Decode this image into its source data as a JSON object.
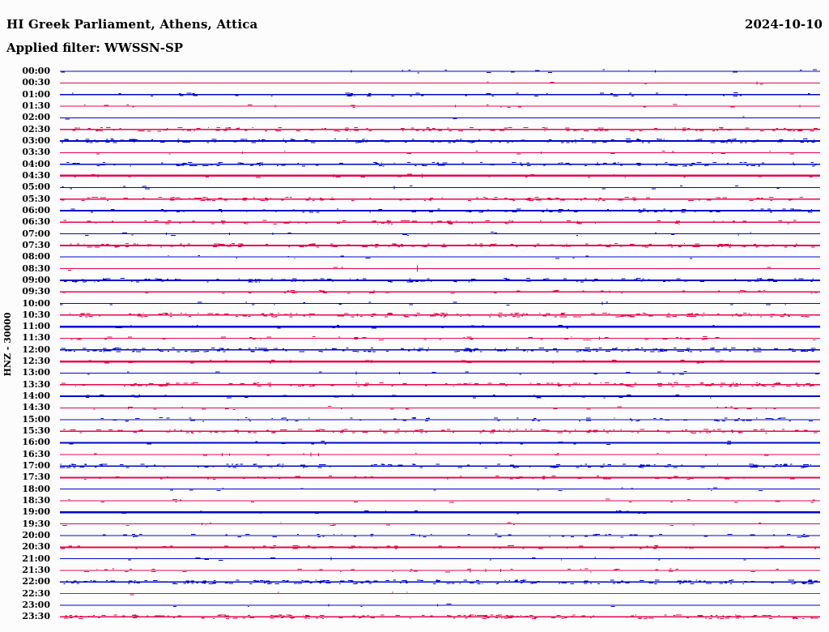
{
  "header": {
    "title": "HI Greek Parliament, Athens, Attica",
    "date": "2024-10-10",
    "filter": "Applied filter: WWSSN-SP"
  },
  "side_label": "HNZ - 30000",
  "colors": {
    "background": "#fcfcfc",
    "text": "#000000",
    "blue": "#0008cc",
    "red": "#e8084c"
  },
  "chart_data": {
    "type": "line",
    "subtype": "helicorder-seismogram",
    "station": "HI Greek Parliament, Athens, Attica",
    "channel": "HNZ",
    "amplitude_scale": 30000,
    "date": "2024-10-10",
    "filter": "WWSSN-SP",
    "row_duration_minutes": 30,
    "rows_per_day": 48,
    "grid": false,
    "legend_position": "none",
    "events_unit": "minutes_into_row, spike_halfheight_px",
    "rows": [
      {
        "time": "00:00",
        "color": "blue",
        "thickness": 1,
        "noise_density": 0.05,
        "noise_amp": 1,
        "events": [
          [
            11.5,
            1.5
          ],
          [
            23.5,
            1.5
          ]
        ]
      },
      {
        "time": "00:30",
        "color": "red",
        "thickness": 1,
        "noise_density": 0.015,
        "noise_amp": 1,
        "events": [
          [
            27.5,
            2
          ]
        ]
      },
      {
        "time": "01:00",
        "color": "blue",
        "thickness": 1.3,
        "noise_density": 0.16,
        "noise_amp": 1.2,
        "events": []
      },
      {
        "time": "01:30",
        "color": "red",
        "thickness": 1,
        "noise_density": 0.05,
        "noise_amp": 1,
        "events": [
          [
            8.5,
            1.5
          ],
          [
            15.6,
            1.5
          ],
          [
            29.2,
            1.5
          ]
        ]
      },
      {
        "time": "02:00",
        "color": "blue",
        "thickness": 1,
        "noise_density": 0.012,
        "noise_amp": 1,
        "events": []
      },
      {
        "time": "02:30",
        "color": "red",
        "thickness": 1.3,
        "noise_density": 0.42,
        "noise_amp": 1.4,
        "events": []
      },
      {
        "time": "03:00",
        "color": "blue",
        "thickness": 1.8,
        "noise_density": 0.45,
        "noise_amp": 1.4,
        "events": []
      },
      {
        "time": "03:30",
        "color": "red",
        "thickness": 1,
        "noise_density": 0.05,
        "noise_amp": 1,
        "events": [
          [
            7.2,
            1.5
          ],
          [
            19,
            1.5
          ]
        ]
      },
      {
        "time": "04:00",
        "color": "blue",
        "thickness": 1.3,
        "noise_density": 0.4,
        "noise_amp": 1.4,
        "events": []
      },
      {
        "time": "04:30",
        "color": "red",
        "thickness": 2.5,
        "noise_density": 0.07,
        "noise_amp": 1,
        "events": [
          [
            1.5,
            2
          ],
          [
            10.8,
            2
          ],
          [
            14.3,
            2.5
          ]
        ]
      },
      {
        "time": "05:00",
        "color": "blue",
        "thickness": 1,
        "noise_density": 0.04,
        "noise_amp": 1,
        "events": [
          [
            13.2,
            2
          ]
        ]
      },
      {
        "time": "05:30",
        "color": "red",
        "thickness": 1.3,
        "noise_density": 0.4,
        "noise_amp": 1.3,
        "events": []
      },
      {
        "time": "06:00",
        "color": "blue",
        "thickness": 1.8,
        "noise_density": 0.25,
        "noise_amp": 1.2,
        "events": []
      },
      {
        "time": "06:30",
        "color": "red",
        "thickness": 1.8,
        "noise_density": 0.25,
        "noise_amp": 1.2,
        "events": []
      },
      {
        "time": "07:00",
        "color": "blue",
        "thickness": 1,
        "noise_density": 0.05,
        "noise_amp": 1,
        "events": [
          [
            4.2,
            1.5
          ],
          [
            6.7,
            1.5
          ],
          [
            8.4,
            1.5
          ]
        ]
      },
      {
        "time": "07:30",
        "color": "red",
        "thickness": 2,
        "noise_density": 0.45,
        "noise_amp": 1.3,
        "events": []
      },
      {
        "time": "08:00",
        "color": "blue",
        "thickness": 1,
        "noise_density": 0.04,
        "noise_amp": 1,
        "events": []
      },
      {
        "time": "08:30",
        "color": "red",
        "thickness": 1,
        "noise_density": 0.015,
        "noise_amp": 1,
        "events": [
          [
            14.1,
            4
          ]
        ]
      },
      {
        "time": "09:00",
        "color": "blue",
        "thickness": 1.8,
        "noise_density": 0.4,
        "noise_amp": 1.4,
        "events": []
      },
      {
        "time": "09:30",
        "color": "red",
        "thickness": 1.6,
        "noise_density": 0.12,
        "noise_amp": 1,
        "events": [
          [
            12.4,
            2
          ],
          [
            21.7,
            1.5
          ]
        ]
      },
      {
        "time": "10:00",
        "color": "blue",
        "thickness": 1,
        "noise_density": 0.06,
        "noise_amp": 1,
        "events": [
          [
            21.4,
            2
          ]
        ]
      },
      {
        "time": "10:30",
        "color": "red",
        "thickness": 1.6,
        "noise_density": 0.58,
        "noise_amp": 1.5,
        "events": []
      },
      {
        "time": "11:00",
        "color": "blue",
        "thickness": 2.5,
        "noise_density": 0.06,
        "noise_amp": 1,
        "events": [
          [
            11,
            2
          ]
        ]
      },
      {
        "time": "11:30",
        "color": "red",
        "thickness": 1.3,
        "noise_density": 0.15,
        "noise_amp": 1,
        "events": [
          [
            21.3,
            2
          ],
          [
            24.5,
            1.5
          ]
        ]
      },
      {
        "time": "12:00",
        "color": "blue",
        "thickness": 1.6,
        "noise_density": 0.62,
        "noise_amp": 1.5,
        "events": []
      },
      {
        "time": "12:30",
        "color": "red",
        "thickness": 2.5,
        "noise_density": 0.08,
        "noise_amp": 1,
        "events": [
          [
            9.1,
            2
          ],
          [
            12.3,
            2
          ]
        ]
      },
      {
        "time": "13:00",
        "color": "blue",
        "thickness": 1,
        "noise_density": 0.05,
        "noise_amp": 1,
        "events": [
          [
            11.7,
            2
          ],
          [
            13.4,
            1.5
          ]
        ]
      },
      {
        "time": "13:30",
        "color": "red",
        "thickness": 1.3,
        "noise_density": 0.45,
        "noise_amp": 1.4,
        "events": []
      },
      {
        "time": "14:00",
        "color": "blue",
        "thickness": 1.8,
        "noise_density": 0.1,
        "noise_amp": 1,
        "events": []
      },
      {
        "time": "14:30",
        "color": "red",
        "thickness": 1,
        "noise_density": 0.08,
        "noise_amp": 1,
        "events": [
          [
            2.7,
            1.5
          ]
        ]
      },
      {
        "time": "15:00",
        "color": "blue",
        "thickness": 1,
        "noise_density": 0.25,
        "noise_amp": 1.2,
        "events": []
      },
      {
        "time": "15:30",
        "color": "red",
        "thickness": 1.3,
        "noise_density": 0.45,
        "noise_amp": 1.3,
        "events": []
      },
      {
        "time": "16:00",
        "color": "blue",
        "thickness": 1.8,
        "noise_density": 0.06,
        "noise_amp": 1,
        "events": []
      },
      {
        "time": "16:30",
        "color": "red",
        "thickness": 1,
        "noise_density": 0.04,
        "noise_amp": 1,
        "events": [
          [
            6.4,
            2
          ],
          [
            6.7,
            1.5
          ],
          [
            9.9,
            2.5
          ],
          [
            10.2,
            2
          ]
        ]
      },
      {
        "time": "17:00",
        "color": "blue",
        "thickness": 1.3,
        "noise_density": 0.45,
        "noise_amp": 1.3,
        "events": []
      },
      {
        "time": "17:30",
        "color": "red",
        "thickness": 2,
        "noise_density": 0.15,
        "noise_amp": 1,
        "events": []
      },
      {
        "time": "18:00",
        "color": "blue",
        "thickness": 1,
        "noise_density": 0.05,
        "noise_amp": 1,
        "events": []
      },
      {
        "time": "18:30",
        "color": "red",
        "thickness": 1,
        "noise_density": 0.06,
        "noise_amp": 1,
        "events": []
      },
      {
        "time": "19:00",
        "color": "blue",
        "thickness": 2.5,
        "noise_density": 0.05,
        "noise_amp": 1,
        "events": []
      },
      {
        "time": "19:30",
        "color": "red",
        "thickness": 1,
        "noise_density": 0.05,
        "noise_amp": 1,
        "events": [
          [
            5.6,
            1.5
          ]
        ]
      },
      {
        "time": "20:00",
        "color": "blue",
        "thickness": 1.3,
        "noise_density": 0.18,
        "noise_amp": 1,
        "events": [
          [
            12.3,
            1.5
          ],
          [
            14.2,
            1.5
          ]
        ]
      },
      {
        "time": "20:30",
        "color": "red",
        "thickness": 2.2,
        "noise_density": 0.18,
        "noise_amp": 1,
        "events": []
      },
      {
        "time": "21:00",
        "color": "blue",
        "thickness": 1,
        "noise_density": 0.04,
        "noise_amp": 1,
        "events": [
          [
            10.7,
            2
          ]
        ]
      },
      {
        "time": "21:30",
        "color": "red",
        "thickness": 1.3,
        "noise_density": 0.12,
        "noise_amp": 1,
        "events": [
          [
            16.2,
            2.5
          ],
          [
            16.8,
            2
          ],
          [
            17.4,
            2
          ]
        ]
      },
      {
        "time": "22:00",
        "color": "blue",
        "thickness": 1.6,
        "noise_density": 0.6,
        "noise_amp": 1.5,
        "events": []
      },
      {
        "time": "22:30",
        "color": "red",
        "thickness": 1,
        "noise_density": 0.015,
        "noise_amp": 1,
        "events": []
      },
      {
        "time": "23:00",
        "color": "blue",
        "thickness": 1,
        "noise_density": 0.02,
        "noise_amp": 1,
        "events": [
          [
            10.6,
            1.5
          ],
          [
            14.9,
            1.5
          ]
        ]
      },
      {
        "time": "23:30",
        "color": "red",
        "thickness": 1.6,
        "noise_density": 0.6,
        "noise_amp": 1.5,
        "events": []
      }
    ]
  }
}
